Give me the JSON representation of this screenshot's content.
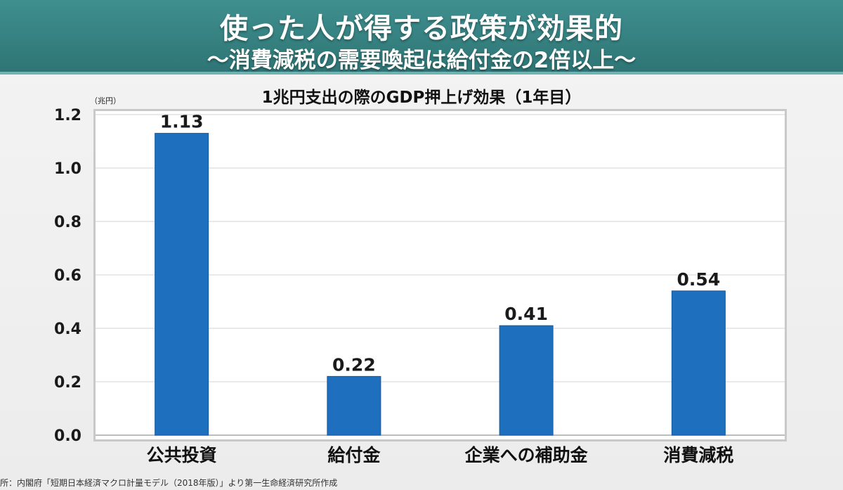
{
  "header": {
    "title": "使った人が得する政策が効果的",
    "subtitle": "〜消費減税の需要喚起は給付金の2倍以上〜"
  },
  "colors": {
    "header_bg": "#2f7575",
    "bar": "#1f6fbf",
    "bar_edge": "#155a9f"
  },
  "chart_data": {
    "type": "bar",
    "title": "1兆円支出の際のGDP押上げ効果（1年目）",
    "unit_label": "（兆円）",
    "xlabel": "",
    "ylabel": "",
    "categories": [
      "公共投資",
      "給付金",
      "企業への補助金",
      "消費減税"
    ],
    "values": [
      1.13,
      0.22,
      0.41,
      0.54
    ],
    "value_labels": [
      "1.13",
      "0.22",
      "0.41",
      "0.54"
    ],
    "ylim": [
      0,
      1.2
    ],
    "yticks": [
      "0.0",
      "0.2",
      "0.4",
      "0.6",
      "0.8",
      "1.0",
      "1.2"
    ],
    "grid": true,
    "legend": "none"
  },
  "source_note": "所：内閣府「短期日本経済マクロ計量モデル（2018年版）」より第一生命経済研究所作成"
}
